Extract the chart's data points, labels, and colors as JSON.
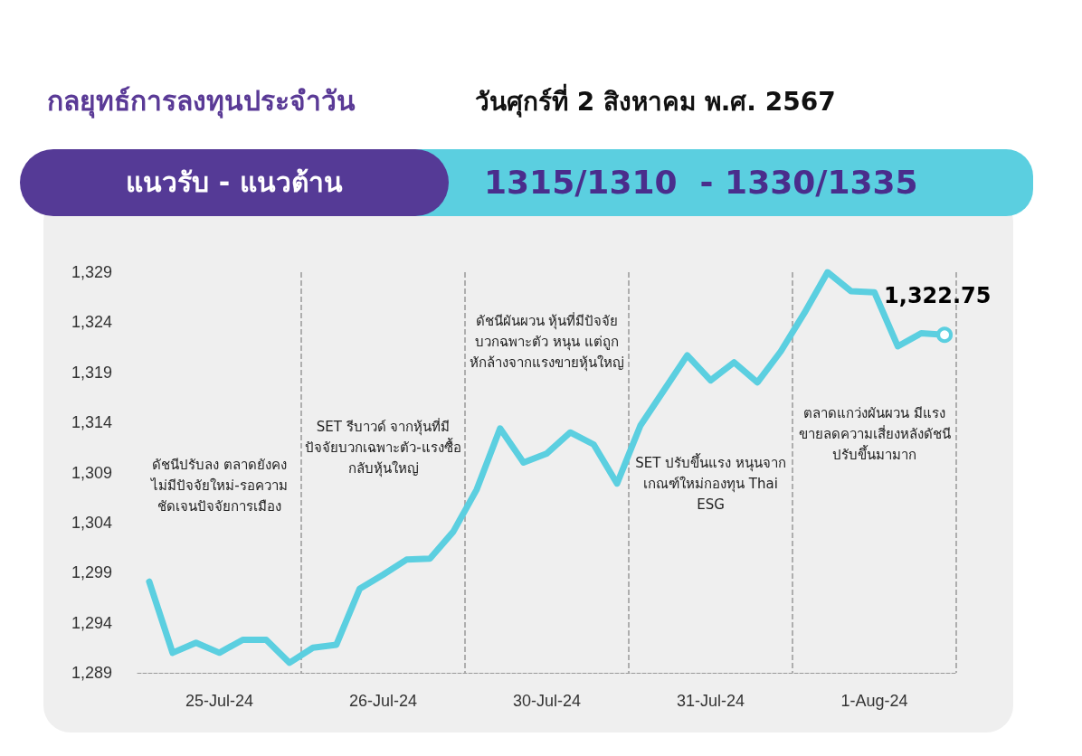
{
  "chart_data": {
    "type": "line",
    "title": "กลยุทธ์การลงทุนประจำวัน",
    "subtitle": "วันศุกร์ที่ 2 สิงหาคม พ.ศ. 2567",
    "annotations": [
      "แนวรับ - แนวต้าน",
      "1315/1310  - 1330/1335",
      "ดัชนีปรับลง ตลาดยังคงไม่มีปัจจัยใหม่-รอความชัดเจนปัจจัยการเมือง",
      "SET รีบาวด์ จากหุ้นที่มีปัจจัยบวกเฉพาะตัว-แรงซื้อกลับหุ้นใหญ่",
      "ดัชนีผันผวน หุ้นที่มีปัจจัยบวกฉพาะตัว หนุน แต่ถูกหักล้างจากแรงขายหุ้นใหญ่",
      "SET ปรับขึ้นแรง หนุนจากเกณฑ์ใหม่กองทุน Thai ESG",
      "ตลาดแกว่งผันผวน มีแรงขายลดความเสี่ยงหลังดัชนีปรับขึ้นมามาก"
    ],
    "categories": [
      null,
      null,
      null,
      "25-Jul-24",
      null,
      null,
      null,
      null,
      null,
      null,
      "26-Jul-24",
      null,
      null,
      null,
      null,
      null,
      null,
      "30-Jul-24",
      null,
      null,
      null,
      null,
      null,
      null,
      "31-Jul-24",
      null,
      null,
      null,
      null,
      null,
      null,
      "1-Aug-24",
      null,
      null,
      null
    ],
    "values": [
      1298.1,
      1291.0,
      1292.0,
      1291.0,
      1292.3,
      1292.3,
      1290.0,
      1291.5,
      1291.8,
      1297.4,
      1298.8,
      1300.3,
      1300.4,
      1303.1,
      1307.3,
      1313.4,
      1310.0,
      1310.9,
      1313.0,
      1311.8,
      1307.9,
      1313.7,
      1317.2,
      1320.7,
      1318.2,
      1320.0,
      1318.0,
      1321.1,
      1324.9,
      1329.0,
      1327.1,
      1327.0,
      1321.6,
      1322.9,
      1322.75
    ],
    "value_labels": [
      null,
      null,
      null,
      null,
      null,
      null,
      null,
      null,
      null,
      null,
      null,
      null,
      null,
      null,
      null,
      null,
      null,
      null,
      null,
      null,
      null,
      null,
      null,
      null,
      null,
      null,
      null,
      null,
      null,
      null,
      null,
      null,
      null,
      null,
      "1,322.75"
    ],
    "color": "#5bcfe0",
    "ylim": [
      1289,
      1329
    ],
    "yticks": [
      {
        "value": 1289,
        "label": "1,289"
      },
      {
        "value": 1294,
        "label": "1,294"
      },
      {
        "value": 1299,
        "label": "1,299"
      },
      {
        "value": 1304,
        "label": "1,304"
      },
      {
        "value": 1309,
        "label": "1,309"
      },
      {
        "value": 1314,
        "label": "1,314"
      },
      {
        "value": 1319,
        "label": "1,319"
      },
      {
        "value": 1324,
        "label": "1,324"
      },
      {
        "value": 1329,
        "label": "1,329"
      }
    ],
    "grid": "x"
  }
}
